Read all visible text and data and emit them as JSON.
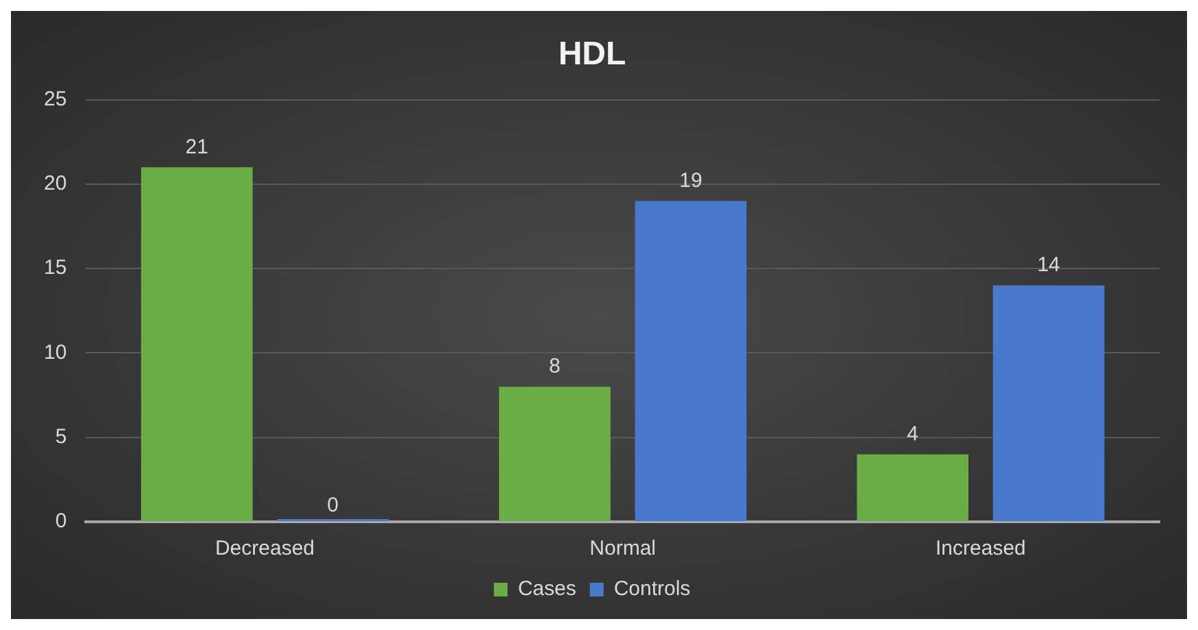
{
  "chart_data": {
    "type": "bar",
    "title": "HDL",
    "categories": [
      "Decreased",
      "Normal",
      "Increased"
    ],
    "series": [
      {
        "name": "Cases",
        "color": "#6aac45",
        "values": [
          21,
          8,
          4
        ]
      },
      {
        "name": "Controls",
        "color": "#4a78cc",
        "values": [
          0,
          19,
          14
        ]
      }
    ],
    "ylim": [
      0,
      25
    ],
    "yticks": [
      0,
      5,
      10,
      15,
      20,
      25
    ],
    "grid": "y",
    "legend": "bottom",
    "data_labels": true
  }
}
